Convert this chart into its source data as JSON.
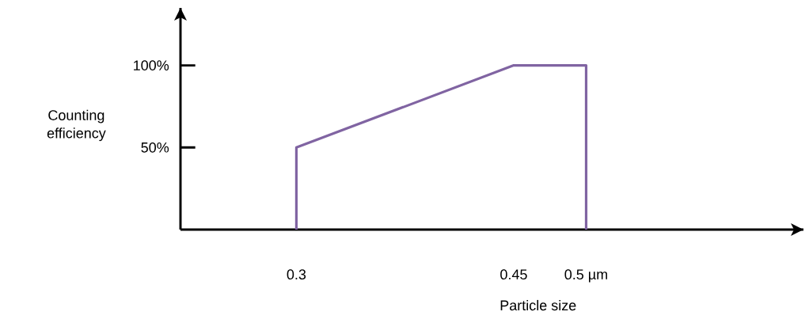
{
  "chart_data": {
    "type": "line",
    "xlabel": "Particle size",
    "ylabel": "Counting efficiency",
    "x": [
      0.3,
      0.3,
      0.45,
      0.5,
      0.5
    ],
    "series": [
      {
        "color": "#8064a2",
        "values": [
          0,
          50,
          100,
          100,
          0
        ]
      }
    ],
    "xlim": [
      0.22,
      0.65
    ],
    "ylim": [
      0,
      135
    ],
    "xticks": [
      0.3,
      0.45,
      {
        "value": 0.5,
        "label": "0.5 µm"
      }
    ],
    "yticks": [
      {
        "value": 50,
        "label": "50%"
      },
      {
        "value": 100,
        "label": "100%"
      }
    ],
    "grid": false,
    "marker": "none",
    "line_style": "solid"
  }
}
